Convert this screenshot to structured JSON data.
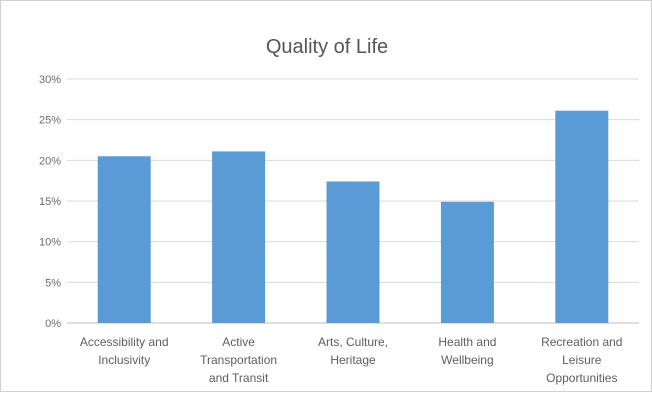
{
  "chart_data": {
    "type": "bar",
    "title": "Quality of Life",
    "xlabel": "",
    "ylabel": "",
    "ylim": [
      0,
      0.3
    ],
    "yticks": [
      "0%",
      "5%",
      "10%",
      "15%",
      "20%",
      "25%",
      "30%"
    ],
    "categories": [
      "Accessibility and Inclusivity",
      "Active Transportation and Transit",
      "Arts, Culture, Heritage",
      "Health and Wellbeing",
      "Recreation and Leisure Opportunities"
    ],
    "category_lines": [
      [
        "Accessibility and",
        "Inclusivity"
      ],
      [
        "Active",
        "Transportation",
        "and Transit"
      ],
      [
        "Arts, Culture,",
        "Heritage"
      ],
      [
        "Health and",
        "Wellbeing"
      ],
      [
        "Recreation and",
        "Leisure",
        "Opportunities"
      ]
    ],
    "values": [
      0.205,
      0.211,
      0.174,
      0.149,
      0.261
    ],
    "grid": true,
    "legend": "none",
    "colors": {
      "bar": "#5b9bd5",
      "grid": "#d9d9d9",
      "text": "#595959"
    }
  }
}
